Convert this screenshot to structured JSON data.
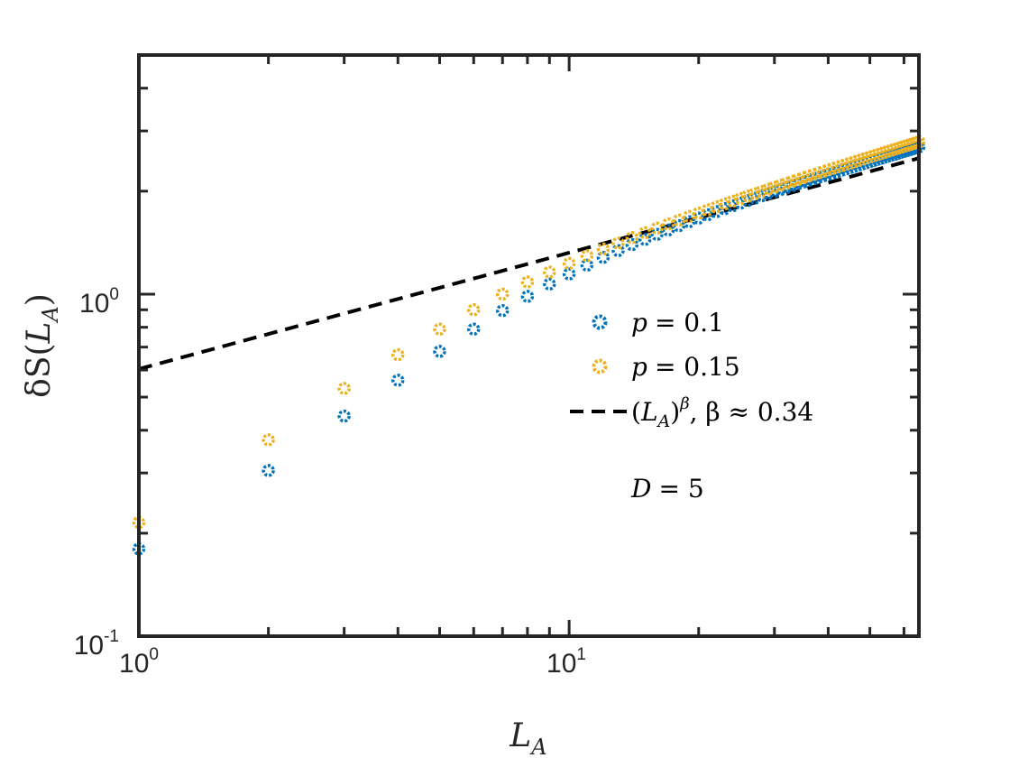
{
  "chart_data": {
    "type": "scatter",
    "title": "",
    "xscale": "log",
    "yscale": "log",
    "xlim": [
      1,
      65
    ],
    "ylim": [
      0.1,
      5.0
    ],
    "xlabel": {
      "base": "L",
      "sub": "A"
    },
    "ylabel": {
      "pre": "δS(",
      "base": "L",
      "sub": "A",
      "post": ")"
    },
    "xticks": [
      {
        "value": 1,
        "base": "10",
        "exp": "0"
      },
      {
        "value": 10,
        "base": "10",
        "exp": "1"
      }
    ],
    "yticks": [
      {
        "value": 0.1,
        "base": "10",
        "exp": "-1"
      },
      {
        "value": 1,
        "base": "10",
        "exp": "0"
      }
    ],
    "series": [
      {
        "name": "p = 0.1",
        "label_lhs": "p",
        "label_rhs": "= 0.1",
        "color": "#0072BD",
        "marker": "circle",
        "x": [
          1,
          2,
          3,
          4,
          5,
          6,
          7,
          8,
          9,
          10,
          11,
          12,
          13,
          14,
          15,
          16,
          17,
          18,
          19,
          20,
          21,
          22,
          23,
          24,
          25,
          26,
          27,
          28,
          29,
          30,
          31,
          32,
          33,
          34,
          35,
          36,
          37,
          38,
          39,
          40,
          41,
          42,
          43,
          44,
          45,
          46,
          47,
          48,
          49,
          50,
          51,
          52,
          53,
          54,
          55,
          56,
          57,
          58,
          59,
          60,
          61,
          62,
          63,
          64,
          65
        ],
        "y": [
          0.18,
          0.305,
          0.44,
          0.56,
          0.68,
          0.79,
          0.895,
          0.985,
          1.07,
          1.145,
          1.215,
          1.28,
          1.34,
          1.395,
          1.445,
          1.495,
          1.54,
          1.585,
          1.628,
          1.668,
          1.706,
          1.743,
          1.778,
          1.812,
          1.845,
          1.877,
          1.908,
          1.938,
          1.967,
          1.995,
          2.022,
          2.049,
          2.075,
          2.1,
          2.125,
          2.149,
          2.172,
          2.195,
          2.218,
          2.24,
          2.262,
          2.283,
          2.304,
          2.324,
          2.344,
          2.364,
          2.384,
          2.403,
          2.422,
          2.441,
          2.459,
          2.477,
          2.495,
          2.513,
          2.53,
          2.547,
          2.564,
          2.581,
          2.598,
          2.614,
          2.63,
          2.646,
          2.662,
          2.678,
          2.694
        ]
      },
      {
        "name": "p = 0.15",
        "label_lhs": "p",
        "label_rhs": "= 0.15",
        "color": "#EDB120",
        "marker": "circle",
        "x": [
          1,
          2,
          3,
          4,
          5,
          6,
          7,
          8,
          9,
          10,
          11,
          12,
          13,
          14,
          15,
          16,
          17,
          18,
          19,
          20,
          21,
          22,
          23,
          24,
          25,
          26,
          27,
          28,
          29,
          30,
          31,
          32,
          33,
          34,
          35,
          36,
          37,
          38,
          39,
          40,
          41,
          42,
          43,
          44,
          45,
          46,
          47,
          48,
          49,
          50,
          51,
          52,
          53,
          54,
          55,
          56,
          57,
          58,
          59,
          60,
          61,
          62,
          63,
          64,
          65
        ],
        "y": [
          0.215,
          0.375,
          0.53,
          0.665,
          0.79,
          0.9,
          1.0,
          1.085,
          1.16,
          1.23,
          1.295,
          1.355,
          1.41,
          1.463,
          1.512,
          1.559,
          1.603,
          1.646,
          1.687,
          1.726,
          1.764,
          1.8,
          1.835,
          1.869,
          1.902,
          1.934,
          1.965,
          1.995,
          2.025,
          2.054,
          2.082,
          2.109,
          2.136,
          2.162,
          2.188,
          2.213,
          2.237,
          2.261,
          2.285,
          2.308,
          2.331,
          2.353,
          2.375,
          2.397,
          2.418,
          2.439,
          2.46,
          2.48,
          2.5,
          2.52,
          2.54,
          2.559,
          2.578,
          2.597,
          2.616,
          2.634,
          2.652,
          2.67,
          2.688,
          2.706,
          2.723,
          2.74,
          2.757,
          2.774,
          2.791
        ]
      }
    ],
    "fit": {
      "name": "(L_A)^β, β ≈ 0.34",
      "color": "#000000",
      "style": "dashed",
      "prefactor": 0.604,
      "beta": 0.34,
      "x_range": [
        1,
        65
      ],
      "legend": {
        "open": "(",
        "base": "L",
        "sub": "A",
        "close": ")",
        "sup": "β",
        "tail": ",  β ≈ 0.34"
      }
    },
    "annotation": {
      "text": "D = 5",
      "lhs": "D",
      "rhs": "= 5"
    },
    "legend_position": "center-right",
    "grid": false
  }
}
